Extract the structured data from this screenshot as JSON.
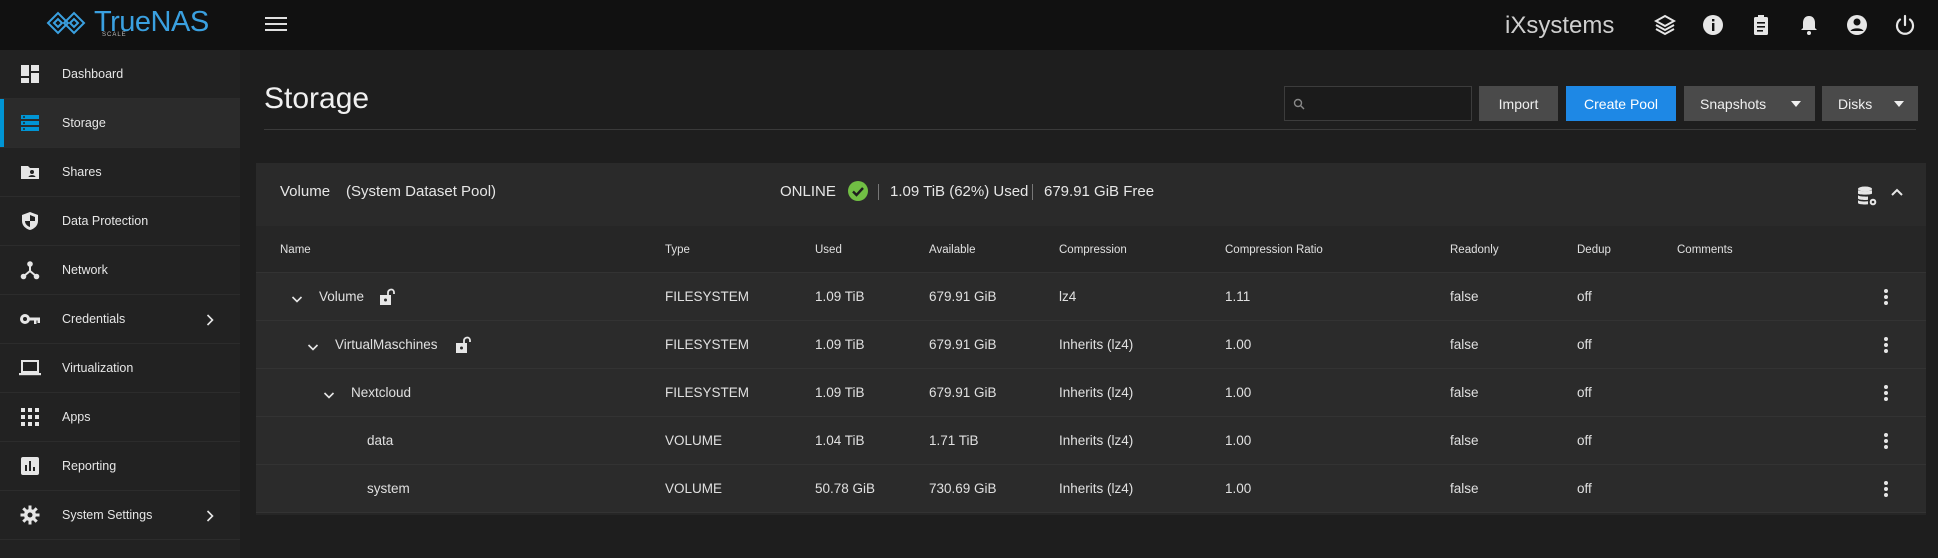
{
  "app": {
    "logo_text": "TrueNAS",
    "logo_sub": "SCALE",
    "vendor": "iXsystems",
    "accent": "#0095d5"
  },
  "topbar": {
    "icons": [
      "hamburger-menu-icon",
      "truecommand-icon",
      "info-icon",
      "clipboard-icon",
      "bell-icon",
      "account-icon",
      "power-icon"
    ]
  },
  "sidebar": {
    "items": [
      {
        "label": "Dashboard",
        "icon": "dashboard-icon"
      },
      {
        "label": "Storage",
        "icon": "storage-icon",
        "active": true
      },
      {
        "label": "Shares",
        "icon": "shares-icon"
      },
      {
        "label": "Data Protection",
        "icon": "shield-icon"
      },
      {
        "label": "Network",
        "icon": "network-icon"
      },
      {
        "label": "Credentials",
        "icon": "key-icon",
        "has_children": true
      },
      {
        "label": "Virtualization",
        "icon": "laptop-icon"
      },
      {
        "label": "Apps",
        "icon": "apps-grid-icon"
      },
      {
        "label": "Reporting",
        "icon": "reporting-icon"
      },
      {
        "label": "System Settings",
        "icon": "gear-icon",
        "has_children": true
      }
    ]
  },
  "page": {
    "title": "Storage",
    "search_placeholder": "",
    "buttons": {
      "import": "Import",
      "create_pool": "Create Pool",
      "snapshots": "Snapshots",
      "disks": "Disks"
    }
  },
  "pool": {
    "name": "Volume",
    "subtitle": "(System Dataset Pool)",
    "status": "ONLINE",
    "status_color": "#71bf44",
    "used": "1.09 TiB (62%) Used",
    "free": "679.91 GiB Free"
  },
  "table": {
    "headers": {
      "name": "Name",
      "type": "Type",
      "used": "Used",
      "available": "Available",
      "compression": "Compression",
      "ratio": "Compression Ratio",
      "readonly": "Readonly",
      "dedup": "Dedup",
      "comments": "Comments"
    },
    "rows": [
      {
        "name": "Volume",
        "type": "FILESYSTEM",
        "used": "1.09 TiB",
        "available": "679.91 GiB",
        "compression": "lz4",
        "ratio": "1.11",
        "readonly": "false",
        "dedup": "off",
        "comments": ""
      },
      {
        "name": "VirtualMaschines",
        "type": "FILESYSTEM",
        "used": "1.09 TiB",
        "available": "679.91 GiB",
        "compression": "Inherits (lz4)",
        "ratio": "1.00",
        "readonly": "false",
        "dedup": "off",
        "comments": ""
      },
      {
        "name": "Nextcloud",
        "type": "FILESYSTEM",
        "used": "1.09 TiB",
        "available": "679.91 GiB",
        "compression": "Inherits (lz4)",
        "ratio": "1.00",
        "readonly": "false",
        "dedup": "off",
        "comments": ""
      },
      {
        "name": "data",
        "type": "VOLUME",
        "used": "1.04 TiB",
        "available": "1.71 TiB",
        "compression": "Inherits (lz4)",
        "ratio": "1.00",
        "readonly": "false",
        "dedup": "off",
        "comments": ""
      },
      {
        "name": "system",
        "type": "VOLUME",
        "used": "50.78 GiB",
        "available": "730.69 GiB",
        "compression": "Inherits (lz4)",
        "ratio": "1.00",
        "readonly": "false",
        "dedup": "off",
        "comments": ""
      }
    ]
  }
}
